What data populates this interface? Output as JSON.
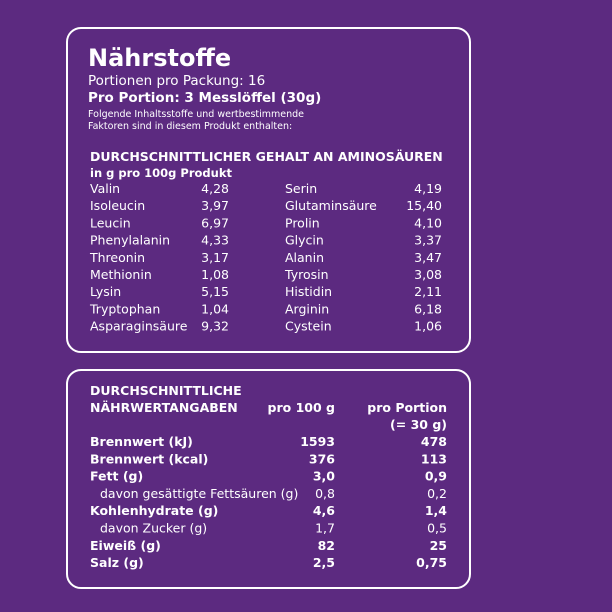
{
  "header": {
    "title": "Nährstoffe",
    "portions": "Portionen pro Packung: 16",
    "serving": "Pro Portion: 3 Messlöffel (30g)",
    "note": [
      "Folgende Inhaltsstoffe und wertbestimmende",
      "Faktoren sind in diesem Produkt enthalten:"
    ]
  },
  "amino": {
    "title": "DURCHSCHNITTLICHER GEHALT AN AMINOSÄUREN",
    "unit": "in g pro 100g Produkt",
    "left": [
      [
        "Valin",
        "4,28"
      ],
      [
        "Isoleucin",
        "3,97"
      ],
      [
        "Leucin",
        "6,97"
      ],
      [
        "Phenylalanin",
        "4,33"
      ],
      [
        "Threonin",
        "3,17"
      ],
      [
        "Methionin",
        "1,08"
      ],
      [
        "Lysin",
        "5,15"
      ],
      [
        "Tryptophan",
        "1,04"
      ],
      [
        "Asparaginsäure",
        "9,32"
      ]
    ],
    "right": [
      [
        "Serin",
        "4,19"
      ],
      [
        "Glutaminsäure",
        "15,40"
      ],
      [
        "Prolin",
        "4,10"
      ],
      [
        "Glycin",
        "3,37"
      ],
      [
        "Alanin",
        "3,47"
      ],
      [
        "Tyrosin",
        "3,08"
      ],
      [
        "Histidin",
        "2,11"
      ],
      [
        "Arginin",
        "6,18"
      ],
      [
        "Cystein",
        "1,06"
      ]
    ]
  },
  "nutrition": {
    "title": [
      "DURCHSCHNITTLICHE",
      "NÄHRWERTANGABEN"
    ],
    "col1": "pro 100 g",
    "col2": [
      "pro Portion",
      "(= 30 g)"
    ],
    "rows": [
      {
        "label": "Brennwert (kJ)",
        "v100": "1593",
        "vportion": "478",
        "sub": false
      },
      {
        "label": "Brennwert (kcal)",
        "v100": "376",
        "vportion": "113",
        "sub": false
      },
      {
        "label": "Fett (g)",
        "v100": "3,0",
        "vportion": "0,9",
        "sub": false
      },
      {
        "label": "davon gesättigte Fettsäuren (g)",
        "v100": "0,8",
        "vportion": "0,2",
        "sub": true
      },
      {
        "label": "Kohlenhydrate (g)",
        "v100": "4,6",
        "vportion": "1,4",
        "sub": false
      },
      {
        "label": "davon Zucker (g)",
        "v100": "1,7",
        "vportion": "0,5",
        "sub": true
      },
      {
        "label": "Eiweiß (g)",
        "v100": "82",
        "vportion": "25",
        "sub": false
      },
      {
        "label": "Salz (g)",
        "v100": "2,5",
        "vportion": "0,75",
        "sub": false
      }
    ]
  }
}
